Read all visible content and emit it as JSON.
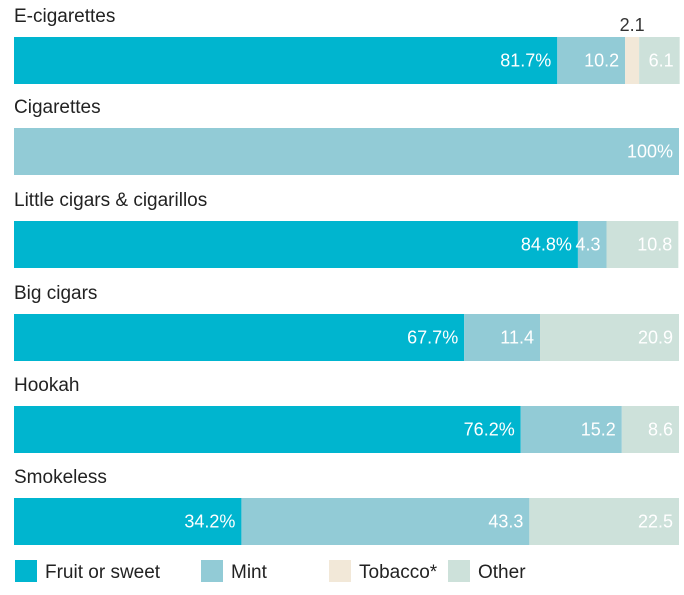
{
  "chart_data": {
    "type": "bar",
    "orientation": "horizontal",
    "stacked": true,
    "normalized": true,
    "categories": [
      "E-cigarettes",
      "Cigarettes",
      "Little cigars & cigarillos",
      "Big cigars",
      "Hookah",
      "Smokeless"
    ],
    "series": [
      {
        "name": "Fruit or sweet",
        "color": "#00b5cf",
        "values": [
          81.7,
          0,
          84.8,
          67.7,
          76.2,
          34.2
        ],
        "labels": [
          "81.7%",
          "",
          "84.8%",
          "67.7%",
          "76.2%",
          "34.2%"
        ]
      },
      {
        "name": "Mint",
        "color": "#92cbd6",
        "values": [
          10.2,
          100,
          4.3,
          11.4,
          15.2,
          43.3
        ],
        "labels": [
          "10.2",
          "100%",
          "4.3",
          "11.4",
          "15.2",
          "43.3"
        ]
      },
      {
        "name": "Tobacco*",
        "color": "#f2e8d8",
        "values": [
          2.1,
          0,
          0,
          0,
          0,
          0
        ],
        "labels": [
          "2.1",
          "",
          "",
          "",
          "",
          ""
        ]
      },
      {
        "name": "Other",
        "color": "#cde1da",
        "values": [
          6.1,
          0,
          10.8,
          20.9,
          8.6,
          22.5
        ],
        "labels": [
          "6.1",
          "",
          "10.8",
          "20.9",
          "8.6",
          "22.5"
        ]
      }
    ],
    "legend_position": "bottom",
    "grid": false
  }
}
